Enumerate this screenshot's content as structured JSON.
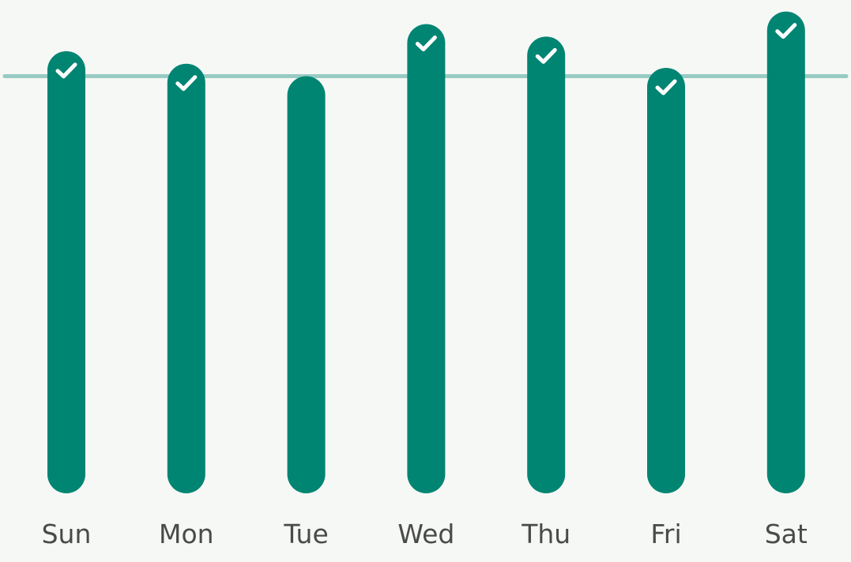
{
  "colors": {
    "background": "#f6f8f5",
    "bar": "#008573",
    "goal_line": "#97cbc3",
    "check": "#ffffff",
    "label": "#4a4a4a"
  },
  "chart_data": {
    "type": "bar",
    "categories": [
      "Sun",
      "Mon",
      "Tue",
      "Wed",
      "Thu",
      "Fri",
      "Sat"
    ],
    "series": [
      {
        "values": [
          1.06,
          1.03,
          1.0,
          1.125,
          1.095,
          1.02,
          1.155
        ],
        "goal_met": [
          true,
          true,
          false,
          true,
          true,
          true,
          true
        ]
      }
    ],
    "goal": 1.0,
    "ylim": [
      0,
      1.16
    ],
    "grid": false,
    "check_icon": "check-icon"
  }
}
